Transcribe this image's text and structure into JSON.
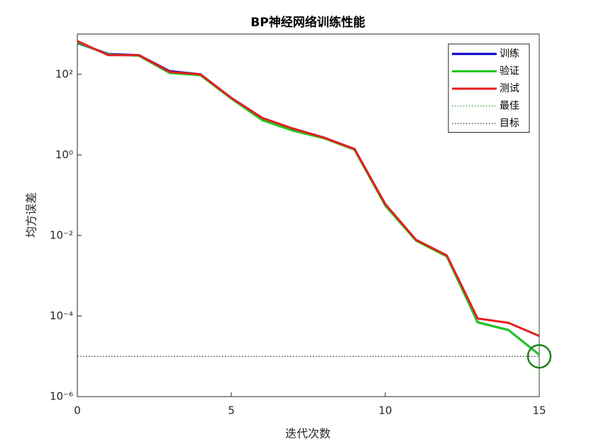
{
  "chart_data": {
    "type": "line",
    "title": "BP神经网络训练性能",
    "xlabel": "迭代次数",
    "ylabel": "均方误差",
    "x": [
      0,
      1,
      2,
      3,
      4,
      5,
      6,
      7,
      8,
      9,
      10,
      11,
      12,
      13,
      14,
      15
    ],
    "series": [
      {
        "name": "训练",
        "color": "#0000c8",
        "values": [
          600,
          320,
          300,
          120,
          100,
          26,
          8.3,
          4.5,
          2.7,
          1.4,
          0.06,
          0.0076,
          0.0031,
          7e-05,
          4.5e-05,
          1.1e-05
        ]
      },
      {
        "name": "验证",
        "color": "#1ec81e",
        "values": [
          620,
          310,
          290,
          108,
          95,
          25,
          7.3,
          4,
          2.6,
          1.35,
          0.055,
          0.0074,
          0.003,
          7e-05,
          4.5e-05,
          1.1e-05
        ]
      },
      {
        "name": "测试",
        "color": "#e61e1e",
        "values": [
          670,
          300,
          300,
          115,
          100,
          26,
          8.3,
          4.5,
          2.7,
          1.4,
          0.06,
          0.0078,
          0.0032,
          8.7e-05,
          6.8e-05,
          3.2e-05
        ]
      }
    ],
    "best": {
      "name": "最佳",
      "color": "#1e821e",
      "x": 15,
      "y": 1e-05
    },
    "goal": {
      "name": "目标",
      "color": "#000000",
      "value": 1e-05
    },
    "xlim": [
      0,
      15
    ],
    "xticks": [
      0,
      5,
      10,
      15
    ],
    "ylim": [
      1e-06,
      1000
    ],
    "yticks": [
      {
        "value": 1e-06,
        "label": "10⁻⁶"
      },
      {
        "value": 0.0001,
        "label": "10⁻⁴"
      },
      {
        "value": 0.01,
        "label": "10⁻²"
      },
      {
        "value": 1,
        "label": "10⁰"
      },
      {
        "value": 100,
        "label": "10²"
      }
    ],
    "log_y": true,
    "grid": false,
    "legend": "upper right"
  }
}
